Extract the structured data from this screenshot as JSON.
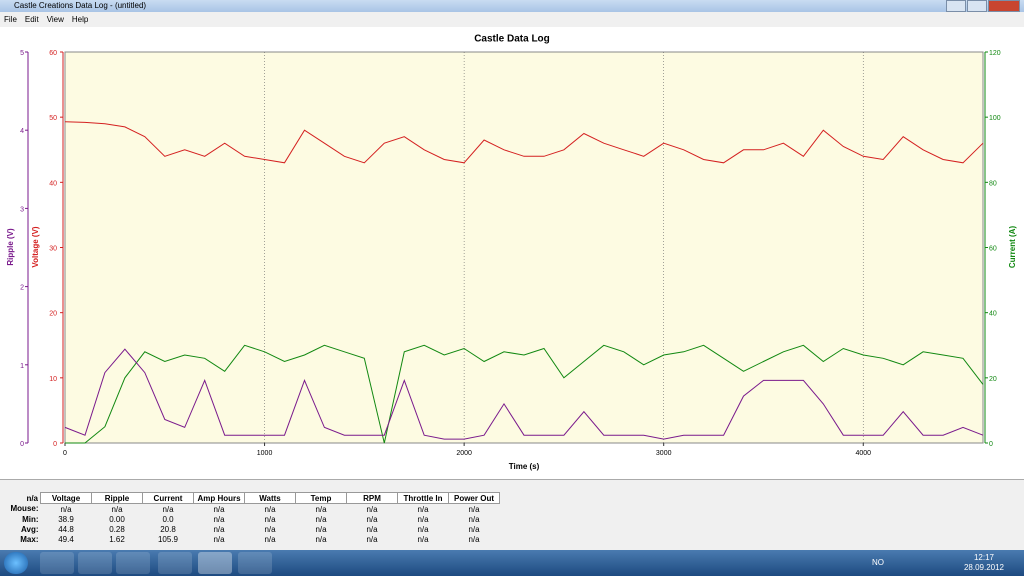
{
  "window": {
    "title": "Castle Creations Data Log - (untitled)",
    "menu": [
      "File",
      "Edit",
      "View",
      "Help"
    ]
  },
  "chart_data": {
    "type": "line",
    "title": "Castle Data Log",
    "x_label": "Time (s)",
    "y_label": "Voltage (V)",
    "y2_label": "Current (A)",
    "y3_label": "Ripple (V)",
    "x": [
      0,
      100,
      200,
      300,
      400,
      500,
      600,
      700,
      800,
      900,
      1000,
      1100,
      1200,
      1300,
      1400,
      1500,
      1600,
      1700,
      1800,
      1900,
      2000,
      2100,
      2200,
      2300,
      2400,
      2500,
      2600,
      2700,
      2800,
      2900,
      3000,
      3100,
      3200,
      3300,
      3400,
      3500,
      3600,
      3700,
      3800,
      3900,
      4000,
      4100,
      4200,
      4300,
      4400,
      4500,
      4600
    ],
    "xlim": [
      0,
      4600
    ],
    "xticks": [
      0,
      1000,
      2000,
      3000,
      4000
    ],
    "ylim": [
      0,
      60
    ],
    "yticks": [
      0,
      10,
      20,
      30,
      40,
      50,
      60
    ],
    "y2lim": [
      0,
      120
    ],
    "y2ticks": [
      0,
      20,
      40,
      60,
      80,
      100,
      120
    ],
    "y3lim": [
      0,
      5
    ],
    "y3ticks": [
      0,
      1,
      2,
      3,
      4,
      5
    ],
    "grid": true,
    "series": [
      {
        "name": "Voltage",
        "color": "#d42020",
        "axis": "y",
        "values": [
          49.3,
          49.2,
          49,
          48.5,
          47,
          44,
          45,
          44,
          46,
          44,
          43.5,
          43,
          48,
          46,
          44,
          43,
          46,
          47,
          45,
          43.5,
          43,
          46.5,
          45,
          44,
          44,
          45,
          47.5,
          46,
          45,
          44,
          46,
          45,
          43.5,
          43,
          45,
          45,
          46,
          44,
          48,
          45.5,
          44,
          43.5,
          47,
          45,
          43.5,
          43,
          46
        ]
      },
      {
        "name": "Current",
        "color": "#118811",
        "axis": "y2",
        "values": [
          0,
          0,
          5,
          20,
          28,
          25,
          27,
          26,
          22,
          30,
          28,
          25,
          27,
          30,
          28,
          26,
          0,
          28,
          30,
          27,
          29,
          25,
          28,
          27,
          29,
          20,
          25,
          30,
          28,
          24,
          27,
          28,
          30,
          26,
          22,
          25,
          28,
          30,
          25,
          29,
          27,
          26,
          24,
          28,
          27,
          26,
          18
        ]
      },
      {
        "name": "Ripple",
        "color": "#7a1a8c",
        "axis": "y3",
        "values": [
          0.2,
          0.1,
          0.9,
          1.2,
          0.9,
          0.3,
          0.2,
          0.8,
          0.1,
          0.1,
          0.1,
          0.1,
          0.8,
          0.2,
          0.1,
          0.1,
          0.1,
          0.8,
          0.1,
          0.05,
          0.05,
          0.1,
          0.5,
          0.1,
          0.1,
          0.1,
          0.4,
          0.1,
          0.1,
          0.1,
          0.05,
          0.1,
          0.1,
          0.1,
          0.6,
          0.8,
          0.8,
          0.8,
          0.5,
          0.1,
          0.1,
          0.1,
          0.4,
          0.1,
          0.1,
          0.2,
          0.1
        ]
      }
    ]
  },
  "table": {
    "corner": "n/a",
    "columns": [
      "Voltage",
      "Ripple",
      "Current",
      "Amp Hours",
      "Watts",
      "Temp",
      "RPM",
      "Throttle In",
      "Power Out"
    ],
    "rows": [
      {
        "label": "Mouse:",
        "cells": [
          "n/a",
          "n/a",
          "n/a",
          "n/a",
          "n/a",
          "n/a",
          "n/a",
          "n/a",
          "n/a"
        ]
      },
      {
        "label": "Min:",
        "cells": [
          "38.9",
          "0.00",
          "0.0",
          "n/a",
          "n/a",
          "n/a",
          "n/a",
          "n/a",
          "n/a"
        ]
      },
      {
        "label": "Avg:",
        "cells": [
          "44.8",
          "0.28",
          "20.8",
          "n/a",
          "n/a",
          "n/a",
          "n/a",
          "n/a",
          "n/a"
        ]
      },
      {
        "label": "Max:",
        "cells": [
          "49.4",
          "1.62",
          "105.9",
          "n/a",
          "n/a",
          "n/a",
          "n/a",
          "n/a",
          "n/a"
        ]
      }
    ]
  },
  "taskbar": {
    "language": "NO",
    "time": "12:17",
    "date": "28.09.2012"
  }
}
